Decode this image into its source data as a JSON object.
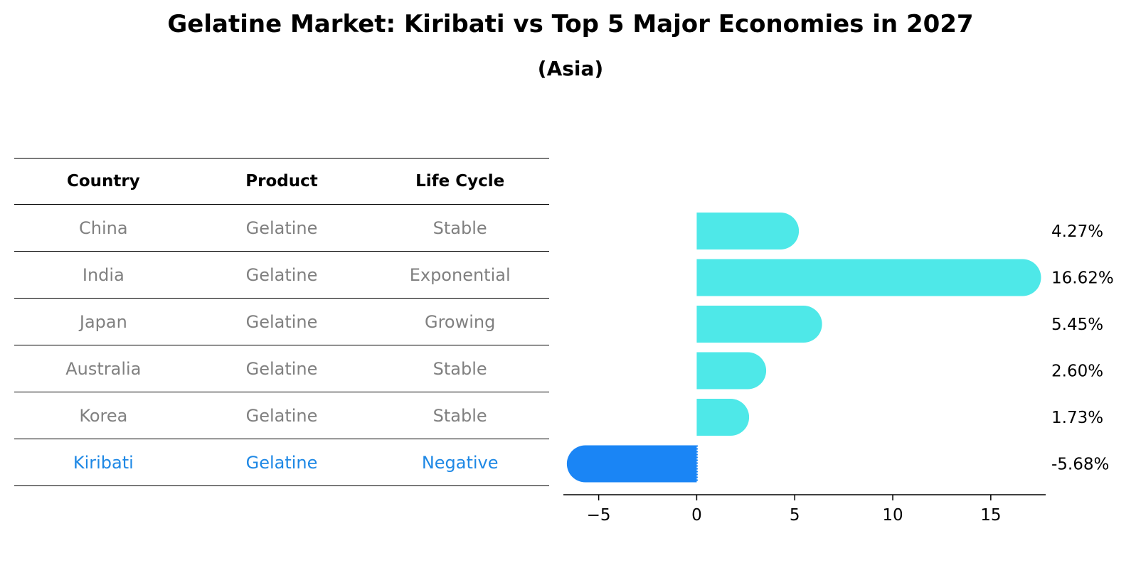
{
  "title": "Gelatine Market: Kiribati vs Top 5 Major Economies in 2027",
  "subtitle": "(Asia)",
  "table": {
    "headers": [
      "Country",
      "Product",
      "Life Cycle"
    ],
    "rows": [
      [
        "China",
        "Gelatine",
        "Stable"
      ],
      [
        "India",
        "Gelatine",
        "Exponential"
      ],
      [
        "Japan",
        "Gelatine",
        "Growing"
      ],
      [
        "Australia",
        "Gelatine",
        "Stable"
      ],
      [
        "Korea",
        "Gelatine",
        "Stable"
      ],
      [
        "Kiribati",
        "Gelatine",
        "Negative"
      ]
    ],
    "highlight_row": "Kiribati",
    "highlight_color": "#1e88e5",
    "text_color": "#808080"
  },
  "chart_data": {
    "type": "bar",
    "orientation": "horizontal",
    "categories": [
      "China",
      "India",
      "Japan",
      "Australia",
      "Korea",
      "Kiribati"
    ],
    "values": [
      4.27,
      16.62,
      5.45,
      2.6,
      1.73,
      -5.68
    ],
    "value_labels": [
      "4.27%",
      "16.62%",
      "5.45%",
      "2.60%",
      "1.73%",
      "-5.68%"
    ],
    "xlim": [
      -6.8,
      17.8
    ],
    "xticks": [
      -5,
      0,
      5,
      10,
      15
    ],
    "xtick_labels": [
      "−5",
      "0",
      "5",
      "10",
      "15"
    ],
    "colors": {
      "positive": "#4ee8e8",
      "highlight": "#1a85f5"
    },
    "grid": false,
    "legend": "none"
  }
}
